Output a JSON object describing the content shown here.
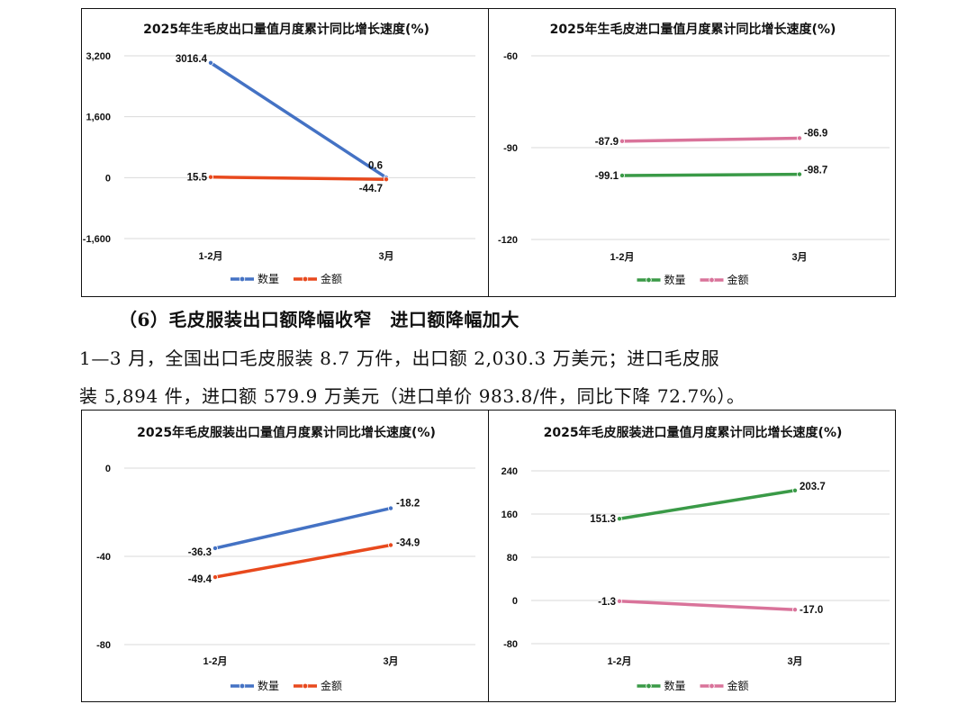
{
  "charts": [
    {
      "title": "2025年生毛皮出口量值月度累计同比增长速度(%)",
      "ymin": -1600,
      "ymax": 3200,
      "yticks": [
        3200,
        1600,
        0,
        -1600
      ],
      "ytick_labels": [
        "3,200",
        "1,600",
        "0",
        "-1,600"
      ],
      "categories": [
        "1-2月",
        "3月"
      ],
      "series": [
        {
          "name": "数量",
          "color": "#4472C4",
          "values": [
            3016.4,
            0.6
          ],
          "labels": [
            "3016.4",
            "0.6"
          ]
        },
        {
          "name": "金额",
          "color": "#E8491D",
          "values": [
            15.5,
            -44.7
          ],
          "labels": [
            "15.5",
            "-44.7"
          ]
        }
      ]
    },
    {
      "title": "2025年生毛皮进口量值月度累计同比增长速度(%)",
      "ymin": -120,
      "ymax": -60,
      "yticks": [
        -60,
        -90,
        -120
      ],
      "ytick_labels": [
        "-60",
        "-90",
        "-120"
      ],
      "categories": [
        "1-2月",
        "3月"
      ],
      "series": [
        {
          "name": "数量",
          "color": "#3A9A47",
          "values": [
            -99.1,
            -98.7
          ],
          "labels": [
            "-99.1",
            "-98.7"
          ]
        },
        {
          "name": "金额",
          "color": "#D9739A",
          "values": [
            -87.9,
            -86.9
          ],
          "labels": [
            "-87.9",
            "-86.9"
          ]
        }
      ]
    },
    {
      "title": "2025年毛皮服装出口量值月度累计同比增长速度(%)",
      "ymin": -80,
      "ymax": 0,
      "yticks": [
        0,
        -40,
        -80
      ],
      "ytick_labels": [
        "0",
        "-40",
        "-80"
      ],
      "categories": [
        "1-2月",
        "3月"
      ],
      "series": [
        {
          "name": "数量",
          "color": "#4472C4",
          "values": [
            -36.3,
            -18.2
          ],
          "labels": [
            "-36.3",
            "-18.2"
          ]
        },
        {
          "name": "金额",
          "color": "#E8491D",
          "values": [
            -49.4,
            -34.9
          ],
          "labels": [
            "-49.4",
            "-34.9"
          ]
        }
      ]
    },
    {
      "title": "2025年毛皮服装进口量值月度累计同比增长速度(%)",
      "ymin": -80,
      "ymax": 240,
      "yticks": [
        240,
        160,
        80,
        0,
        -80
      ],
      "ytick_labels": [
        "240",
        "160",
        "80",
        "0",
        "-80"
      ],
      "categories": [
        "1-2月",
        "3月"
      ],
      "series": [
        {
          "name": "数量",
          "color": "#3A9A47",
          "values": [
            151.3,
            203.7
          ],
          "labels": [
            "151.3",
            "203.7"
          ]
        },
        {
          "name": "金额",
          "color": "#D9739A",
          "values": [
            -1.3,
            -17.0
          ],
          "labels": [
            "-1.3",
            "-17.0"
          ]
        }
      ]
    }
  ],
  "text": {
    "heading": "（6）毛皮服装出口额降幅收窄　进口额降幅加大",
    "para_line1": "1—3 月，全国出口毛皮服装 8.7 万件，出口额 2,030.3 万美元；进口毛皮服",
    "para_line2": "装 5,894 件，进口额 579.9 万美元（进口单价 983.8/件，同比下降 72.7%）。"
  }
}
